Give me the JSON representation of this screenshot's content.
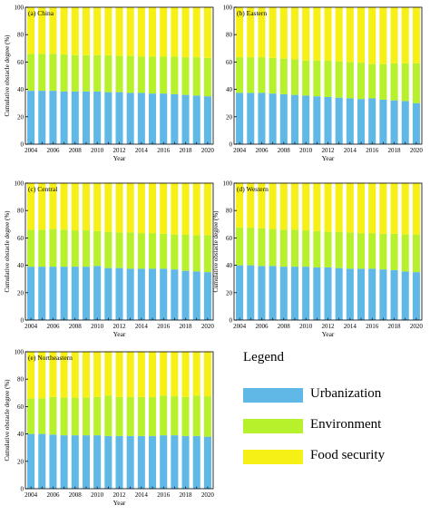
{
  "colors": {
    "urbanization": "#5fb8e6",
    "environment": "#b6f12b",
    "food_security": "#f7f016",
    "axis": "#000000"
  },
  "legend": {
    "title": "Legend",
    "items": [
      {
        "key": "urbanization",
        "label": "Urbanization"
      },
      {
        "key": "environment",
        "label": "Environment"
      },
      {
        "key": "food_security",
        "label": "Food security"
      }
    ]
  },
  "chart_data": [
    {
      "type": "bar",
      "stacked": true,
      "title": "(a) China",
      "xlabel": "Year",
      "ylabel": "Cumulative obstacle degree (%)",
      "ylim": [
        0,
        100
      ],
      "yticks": [
        0,
        20,
        40,
        60,
        80,
        100
      ],
      "categories": [
        "2004",
        "2005",
        "2006",
        "2007",
        "2008",
        "2009",
        "2010",
        "2011",
        "2012",
        "2013",
        "2014",
        "2015",
        "2016",
        "2017",
        "2018",
        "2019",
        "2020"
      ],
      "xtick_labels": [
        "2004",
        "2006",
        "2008",
        "2010",
        "2012",
        "2014",
        "2016",
        "2018",
        "2020"
      ],
      "series": [
        {
          "name": "Urbanization",
          "values": [
            39,
            39,
            39,
            38.5,
            38.5,
            38.5,
            38.5,
            38,
            38,
            37.5,
            37.5,
            37,
            37,
            36.5,
            36,
            35.5,
            35
          ]
        },
        {
          "name": "Environment",
          "values": [
            27,
            27,
            27,
            27,
            26.5,
            26.5,
            26.5,
            27,
            26.5,
            27,
            26.5,
            27,
            27,
            27.5,
            27.5,
            28,
            28
          ]
        },
        {
          "name": "Food security",
          "values": [
            34,
            34,
            34,
            34.5,
            35,
            35,
            35,
            35,
            35.5,
            35.5,
            36,
            36,
            36,
            36,
            36.5,
            36.5,
            37
          ]
        }
      ]
    },
    {
      "type": "bar",
      "stacked": true,
      "title": "(b) Eastern",
      "xlabel": "Year",
      "ylabel": "",
      "ylim": [
        0,
        100
      ],
      "yticks": [
        0,
        20,
        40,
        60,
        80,
        100
      ],
      "categories": [
        "2004",
        "2005",
        "2006",
        "2007",
        "2008",
        "2009",
        "2010",
        "2011",
        "2012",
        "2013",
        "2014",
        "2015",
        "2016",
        "2017",
        "2018",
        "2019",
        "2020"
      ],
      "xtick_labels": [
        "2004",
        "2006",
        "2008",
        "2010",
        "2012",
        "2014",
        "2016",
        "2018",
        "2020"
      ],
      "series": [
        {
          "name": "Urbanization",
          "values": [
            37.5,
            37.5,
            37.5,
            37,
            36.5,
            36,
            35.5,
            35,
            34.5,
            34,
            33.5,
            33,
            33.5,
            32.5,
            32,
            31.5,
            30
          ]
        },
        {
          "name": "Environment",
          "values": [
            26,
            26,
            26,
            26,
            26,
            26,
            25.5,
            26,
            26.5,
            26.5,
            26.5,
            26.5,
            25,
            26,
            27,
            27.5,
            29
          ]
        },
        {
          "name": "Food security",
          "values": [
            36.5,
            36.5,
            36.5,
            37,
            37.5,
            38,
            39,
            39,
            39,
            39.5,
            40,
            40.5,
            41.5,
            41.5,
            41,
            41,
            41
          ]
        }
      ]
    },
    {
      "type": "bar",
      "stacked": true,
      "title": "(c) Central",
      "xlabel": "Year",
      "ylabel": "Cumulative obstacle degree (%)",
      "ylim": [
        0,
        100
      ],
      "yticks": [
        0,
        20,
        40,
        60,
        80,
        100
      ],
      "categories": [
        "2004",
        "2005",
        "2006",
        "2007",
        "2008",
        "2009",
        "2010",
        "2011",
        "2012",
        "2013",
        "2014",
        "2015",
        "2016",
        "2017",
        "2018",
        "2019",
        "2020"
      ],
      "xtick_labels": [
        "2004",
        "2006",
        "2008",
        "2010",
        "2012",
        "2014",
        "2016",
        "2018",
        "2020"
      ],
      "series": [
        {
          "name": "Urbanization",
          "values": [
            39,
            39,
            39,
            39,
            39,
            39,
            39.5,
            38,
            38,
            37.5,
            37.5,
            37.5,
            37.5,
            37,
            36,
            35.5,
            35
          ]
        },
        {
          "name": "Environment",
          "values": [
            27,
            27,
            27.5,
            27,
            26.5,
            26.5,
            25.5,
            26.5,
            26,
            26.5,
            26,
            26,
            25.5,
            25.5,
            26.5,
            26.5,
            27
          ]
        },
        {
          "name": "Food security",
          "values": [
            34,
            34,
            33.5,
            34,
            34.5,
            34.5,
            35,
            35.5,
            36,
            36,
            36.5,
            36.5,
            37,
            37.5,
            37.5,
            38,
            38
          ]
        }
      ]
    },
    {
      "type": "bar",
      "stacked": true,
      "title": "(d) Western",
      "xlabel": "Year",
      "ylabel": "Cumulative obstacle degree (%)",
      "ylim": [
        0,
        100
      ],
      "yticks": [
        0,
        20,
        40,
        60,
        80,
        100
      ],
      "categories": [
        "2004",
        "2005",
        "2006",
        "2007",
        "2008",
        "2009",
        "2010",
        "2011",
        "2012",
        "2013",
        "2014",
        "2015",
        "2016",
        "2017",
        "2018",
        "2019",
        "2020"
      ],
      "xtick_labels": [
        "2004",
        "2006",
        "2008",
        "2010",
        "2012",
        "2014",
        "2016",
        "2018",
        "2020"
      ],
      "series": [
        {
          "name": "Urbanization",
          "values": [
            40,
            40,
            39.5,
            39.5,
            39,
            39,
            39,
            38.5,
            38.5,
            38,
            37.5,
            37.5,
            37.5,
            37,
            36.5,
            35.5,
            35
          ]
        },
        {
          "name": "Environment",
          "values": [
            27.5,
            27.5,
            27.5,
            27,
            27,
            27,
            26.5,
            26.5,
            26,
            26.5,
            26.5,
            26,
            26,
            26,
            26.5,
            27,
            27.5
          ]
        },
        {
          "name": "Food security",
          "values": [
            32.5,
            32.5,
            33,
            33.5,
            34,
            34,
            34.5,
            35,
            35.5,
            35.5,
            36,
            36.5,
            36.5,
            37,
            37,
            37.5,
            37.5
          ]
        }
      ]
    },
    {
      "type": "bar",
      "stacked": true,
      "title": "(e) Northeastern",
      "xlabel": "Year",
      "ylabel": "Cumulative obstacle degree (%)",
      "ylim": [
        0,
        100
      ],
      "yticks": [
        0,
        20,
        40,
        60,
        80,
        100
      ],
      "categories": [
        "2004",
        "2005",
        "2006",
        "2007",
        "2008",
        "2009",
        "2010",
        "2011",
        "2012",
        "2013",
        "2014",
        "2015",
        "2016",
        "2017",
        "2018",
        "2019",
        "2020"
      ],
      "xtick_labels": [
        "2004",
        "2006",
        "2008",
        "2010",
        "2012",
        "2014",
        "2016",
        "2018",
        "2020"
      ],
      "series": [
        {
          "name": "Urbanization",
          "values": [
            40,
            40,
            39.5,
            39,
            39,
            39,
            39,
            38.5,
            38.5,
            38.5,
            38.5,
            38.5,
            39,
            39,
            38.5,
            38.5,
            38
          ]
        },
        {
          "name": "Environment",
          "values": [
            26,
            26,
            27.5,
            27.5,
            27.5,
            27.5,
            28,
            29.5,
            28.5,
            28.5,
            28.5,
            28.5,
            29,
            28.5,
            28.5,
            29.5,
            29.5
          ]
        },
        {
          "name": "Food security",
          "values": [
            34,
            34,
            33,
            33.5,
            33.5,
            33.5,
            33,
            32,
            33,
            33,
            33,
            33,
            32,
            32.5,
            33,
            32,
            32.5
          ]
        }
      ]
    }
  ]
}
